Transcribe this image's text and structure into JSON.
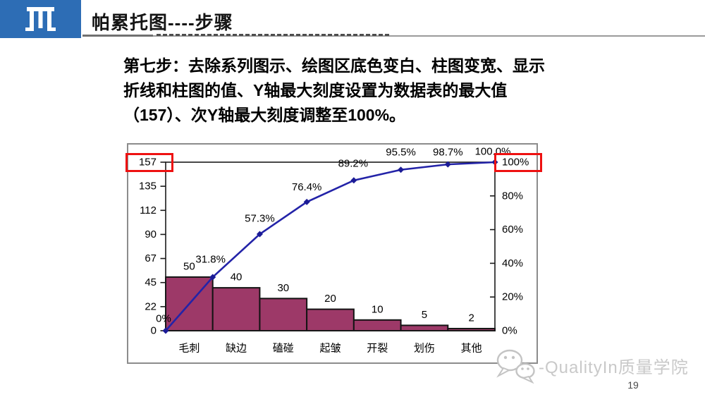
{
  "header": {
    "title": "帕累托图----步骤",
    "logo": "gate-monogram"
  },
  "instruction": {
    "line1": "第七步：去除系列图示、绘图区底色变白、柱图变宽、显示",
    "line2": "折线和柱图的值、Y轴最大刻度设置为数据表的最大值",
    "line3": "（157）、次Y轴最大刻度调整至100%。"
  },
  "chart_data": {
    "type": "bar",
    "subtype": "pareto (bar + cumulative line, dual y-axis)",
    "title": "",
    "categories": [
      "毛刺",
      "缺边",
      "磕碰",
      "起皱",
      "开裂",
      "划伤",
      "其他"
    ],
    "bar_values": [
      50,
      40,
      30,
      20,
      10,
      5,
      2
    ],
    "bar_labels": [
      "50",
      "40",
      "30",
      "20",
      "10",
      "5",
      "2"
    ],
    "cumulative_pct": [
      0,
      31.8,
      57.3,
      76.4,
      89.2,
      95.5,
      98.7,
      100.0
    ],
    "cumulative_labels": [
      "0%",
      "31.8%",
      "57.3%",
      "76.4%",
      "89.2%",
      "95.5%",
      "98.7%",
      "100.0%"
    ],
    "left_axis": {
      "label": "",
      "min": 0,
      "max": 157,
      "ticks": [
        "157",
        "135",
        "112",
        "90",
        "67",
        "45",
        "22",
        "0"
      ]
    },
    "right_axis": {
      "label": "",
      "min_pct": 0,
      "max_pct": 100,
      "ticks": [
        "100%",
        "80%",
        "60%",
        "40%",
        "20%",
        "0%"
      ]
    },
    "legend": "none",
    "grid": "off",
    "colors": {
      "bar_fill": "#9d3968",
      "bar_border": "#141414",
      "line": "#2323a8",
      "marker": "#1b1b96",
      "plot_border": "#1a1a1a",
      "highlight_box": "#ee1111"
    },
    "annotations": [
      {
        "type": "red-box",
        "around": "157",
        "location": "left-axis-max"
      },
      {
        "type": "red-box",
        "around": "100%",
        "location": "right-axis-max"
      }
    ]
  },
  "watermark": {
    "icon": "wechat-icon",
    "text": "-QualityIn质量学院"
  },
  "footer": {
    "page_number": "19"
  }
}
